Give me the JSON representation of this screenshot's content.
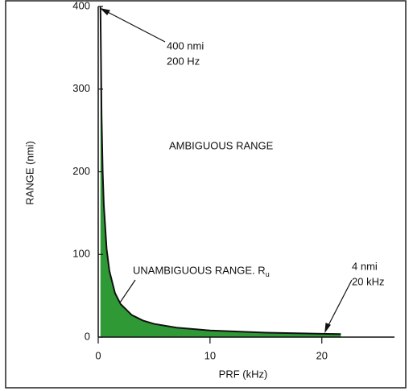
{
  "chart_data": {
    "type": "area",
    "xlabel": "PRF (kHz)",
    "ylabel": "RANGE (nmi)",
    "x": [
      0.2,
      0.3,
      0.4,
      0.5,
      0.75,
      1,
      1.5,
      2,
      3,
      4,
      5,
      7,
      10,
      15,
      20,
      21.7
    ],
    "values": [
      400,
      266.7,
      200,
      160,
      106.7,
      80,
      53.3,
      40,
      26.7,
      20,
      16,
      11.4,
      8,
      5.3,
      4,
      3.7
    ],
    "color": "#2f9a35",
    "xlim": [
      0,
      26.5
    ],
    "ylim": [
      0,
      400
    ],
    "xticks": [
      0,
      10,
      20
    ],
    "yticks": [
      0,
      100,
      200,
      300,
      400
    ],
    "annotations": [
      {
        "lines": [
          "400 nmi",
          "200 Hz"
        ]
      },
      {
        "lines": [
          "AMBIGUOUS RANGE"
        ]
      },
      {
        "lines": [
          "UNAMBIGUOUS RANGE. R"
        ],
        "subscript": "u"
      },
      {
        "lines": [
          "4 nmi",
          "20 kHz"
        ]
      }
    ]
  }
}
